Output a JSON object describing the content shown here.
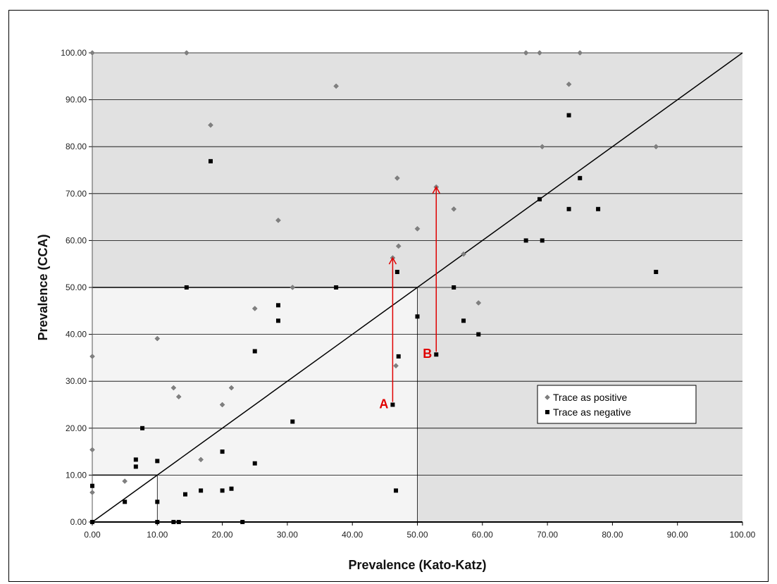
{
  "chart_data": {
    "type": "scatter",
    "xlabel": "Prevalence (Kato-Katz)",
    "ylabel": "Prevalence (CCA)",
    "xlim": [
      0,
      100
    ],
    "ylim": [
      0,
      100
    ],
    "x_ticks": [
      "0.00",
      "10.00",
      "20.00",
      "30.00",
      "40.00",
      "50.00",
      "60.00",
      "70.00",
      "80.00",
      "90.00",
      "100.00"
    ],
    "y_ticks": [
      "0.00",
      "10.00",
      "20.00",
      "30.00",
      "40.00",
      "50.00",
      "60.00",
      "70.00",
      "80.00",
      "90.00",
      "100.00"
    ],
    "grid": "horizontal",
    "legend_position": "lower-right",
    "diagonal_line": [
      [
        0,
        0
      ],
      [
        100,
        100
      ]
    ],
    "threshold_boxes": [
      10,
      50
    ],
    "series": [
      {
        "name": "Trace as positive",
        "marker": "diamond",
        "color": "#808080",
        "points": [
          [
            0,
            100
          ],
          [
            14.5,
            100
          ],
          [
            66.7,
            100
          ],
          [
            68.8,
            100
          ],
          [
            75,
            100
          ],
          [
            37.5,
            92.9
          ],
          [
            73.3,
            93.3
          ],
          [
            18.2,
            84.6
          ],
          [
            69.2,
            80
          ],
          [
            86.7,
            80
          ],
          [
            46.9,
            73.3
          ],
          [
            52.9,
            71.4
          ],
          [
            55.6,
            66.7
          ],
          [
            28.6,
            64.3
          ],
          [
            50,
            62.5
          ],
          [
            47.1,
            58.8
          ],
          [
            57.1,
            57.1
          ],
          [
            46.2,
            56.3
          ],
          [
            30.8,
            50
          ],
          [
            59.4,
            46.7
          ],
          [
            25,
            45.5
          ],
          [
            10,
            39.1
          ],
          [
            0,
            35.3
          ],
          [
            46.7,
            33.3
          ],
          [
            12.5,
            28.6
          ],
          [
            21.4,
            28.6
          ],
          [
            13.3,
            26.7
          ],
          [
            20,
            25
          ],
          [
            0,
            15.4
          ],
          [
            16.7,
            13.3
          ],
          [
            5,
            8.7
          ],
          [
            0,
            6.3
          ]
        ]
      },
      {
        "name": "Trace as negative",
        "marker": "square",
        "color": "#000000",
        "points": [
          [
            73.3,
            86.7
          ],
          [
            18.2,
            76.9
          ],
          [
            75,
            73.3
          ],
          [
            68.8,
            68.8
          ],
          [
            73.3,
            66.7
          ],
          [
            77.8,
            66.7
          ],
          [
            66.7,
            60
          ],
          [
            69.2,
            60
          ],
          [
            46.9,
            53.3
          ],
          [
            86.7,
            53.3
          ],
          [
            14.5,
            50
          ],
          [
            37.5,
            50
          ],
          [
            55.6,
            50
          ],
          [
            28.6,
            46.2
          ],
          [
            28.6,
            42.9
          ],
          [
            50,
            43.8
          ],
          [
            57.1,
            42.9
          ],
          [
            59.4,
            40
          ],
          [
            25,
            36.4
          ],
          [
            47.1,
            35.3
          ],
          [
            52.9,
            35.7
          ],
          [
            46.2,
            25
          ],
          [
            30.8,
            21.4
          ],
          [
            7.7,
            20
          ],
          [
            20,
            15
          ],
          [
            6.7,
            13.3
          ],
          [
            10,
            13
          ],
          [
            25,
            12.5
          ],
          [
            6.7,
            11.8
          ],
          [
            0,
            7.7
          ],
          [
            16.7,
            6.7
          ],
          [
            20,
            6.7
          ],
          [
            21.4,
            7.1
          ],
          [
            46.7,
            6.7
          ],
          [
            14.3,
            5.9
          ],
          [
            5,
            4.3
          ],
          [
            10,
            4.3
          ],
          [
            0,
            0
          ],
          [
            10,
            0
          ],
          [
            12.5,
            0
          ],
          [
            13.3,
            0
          ],
          [
            23.1,
            0
          ]
        ]
      }
    ],
    "annotations": [
      {
        "label": "A",
        "from": [
          46.2,
          25
        ],
        "to": [
          46.2,
          56.3
        ],
        "color": "#e00000"
      },
      {
        "label": "B",
        "from": [
          52.9,
          35.7
        ],
        "to": [
          52.9,
          71.4
        ],
        "color": "#e00000"
      }
    ]
  }
}
